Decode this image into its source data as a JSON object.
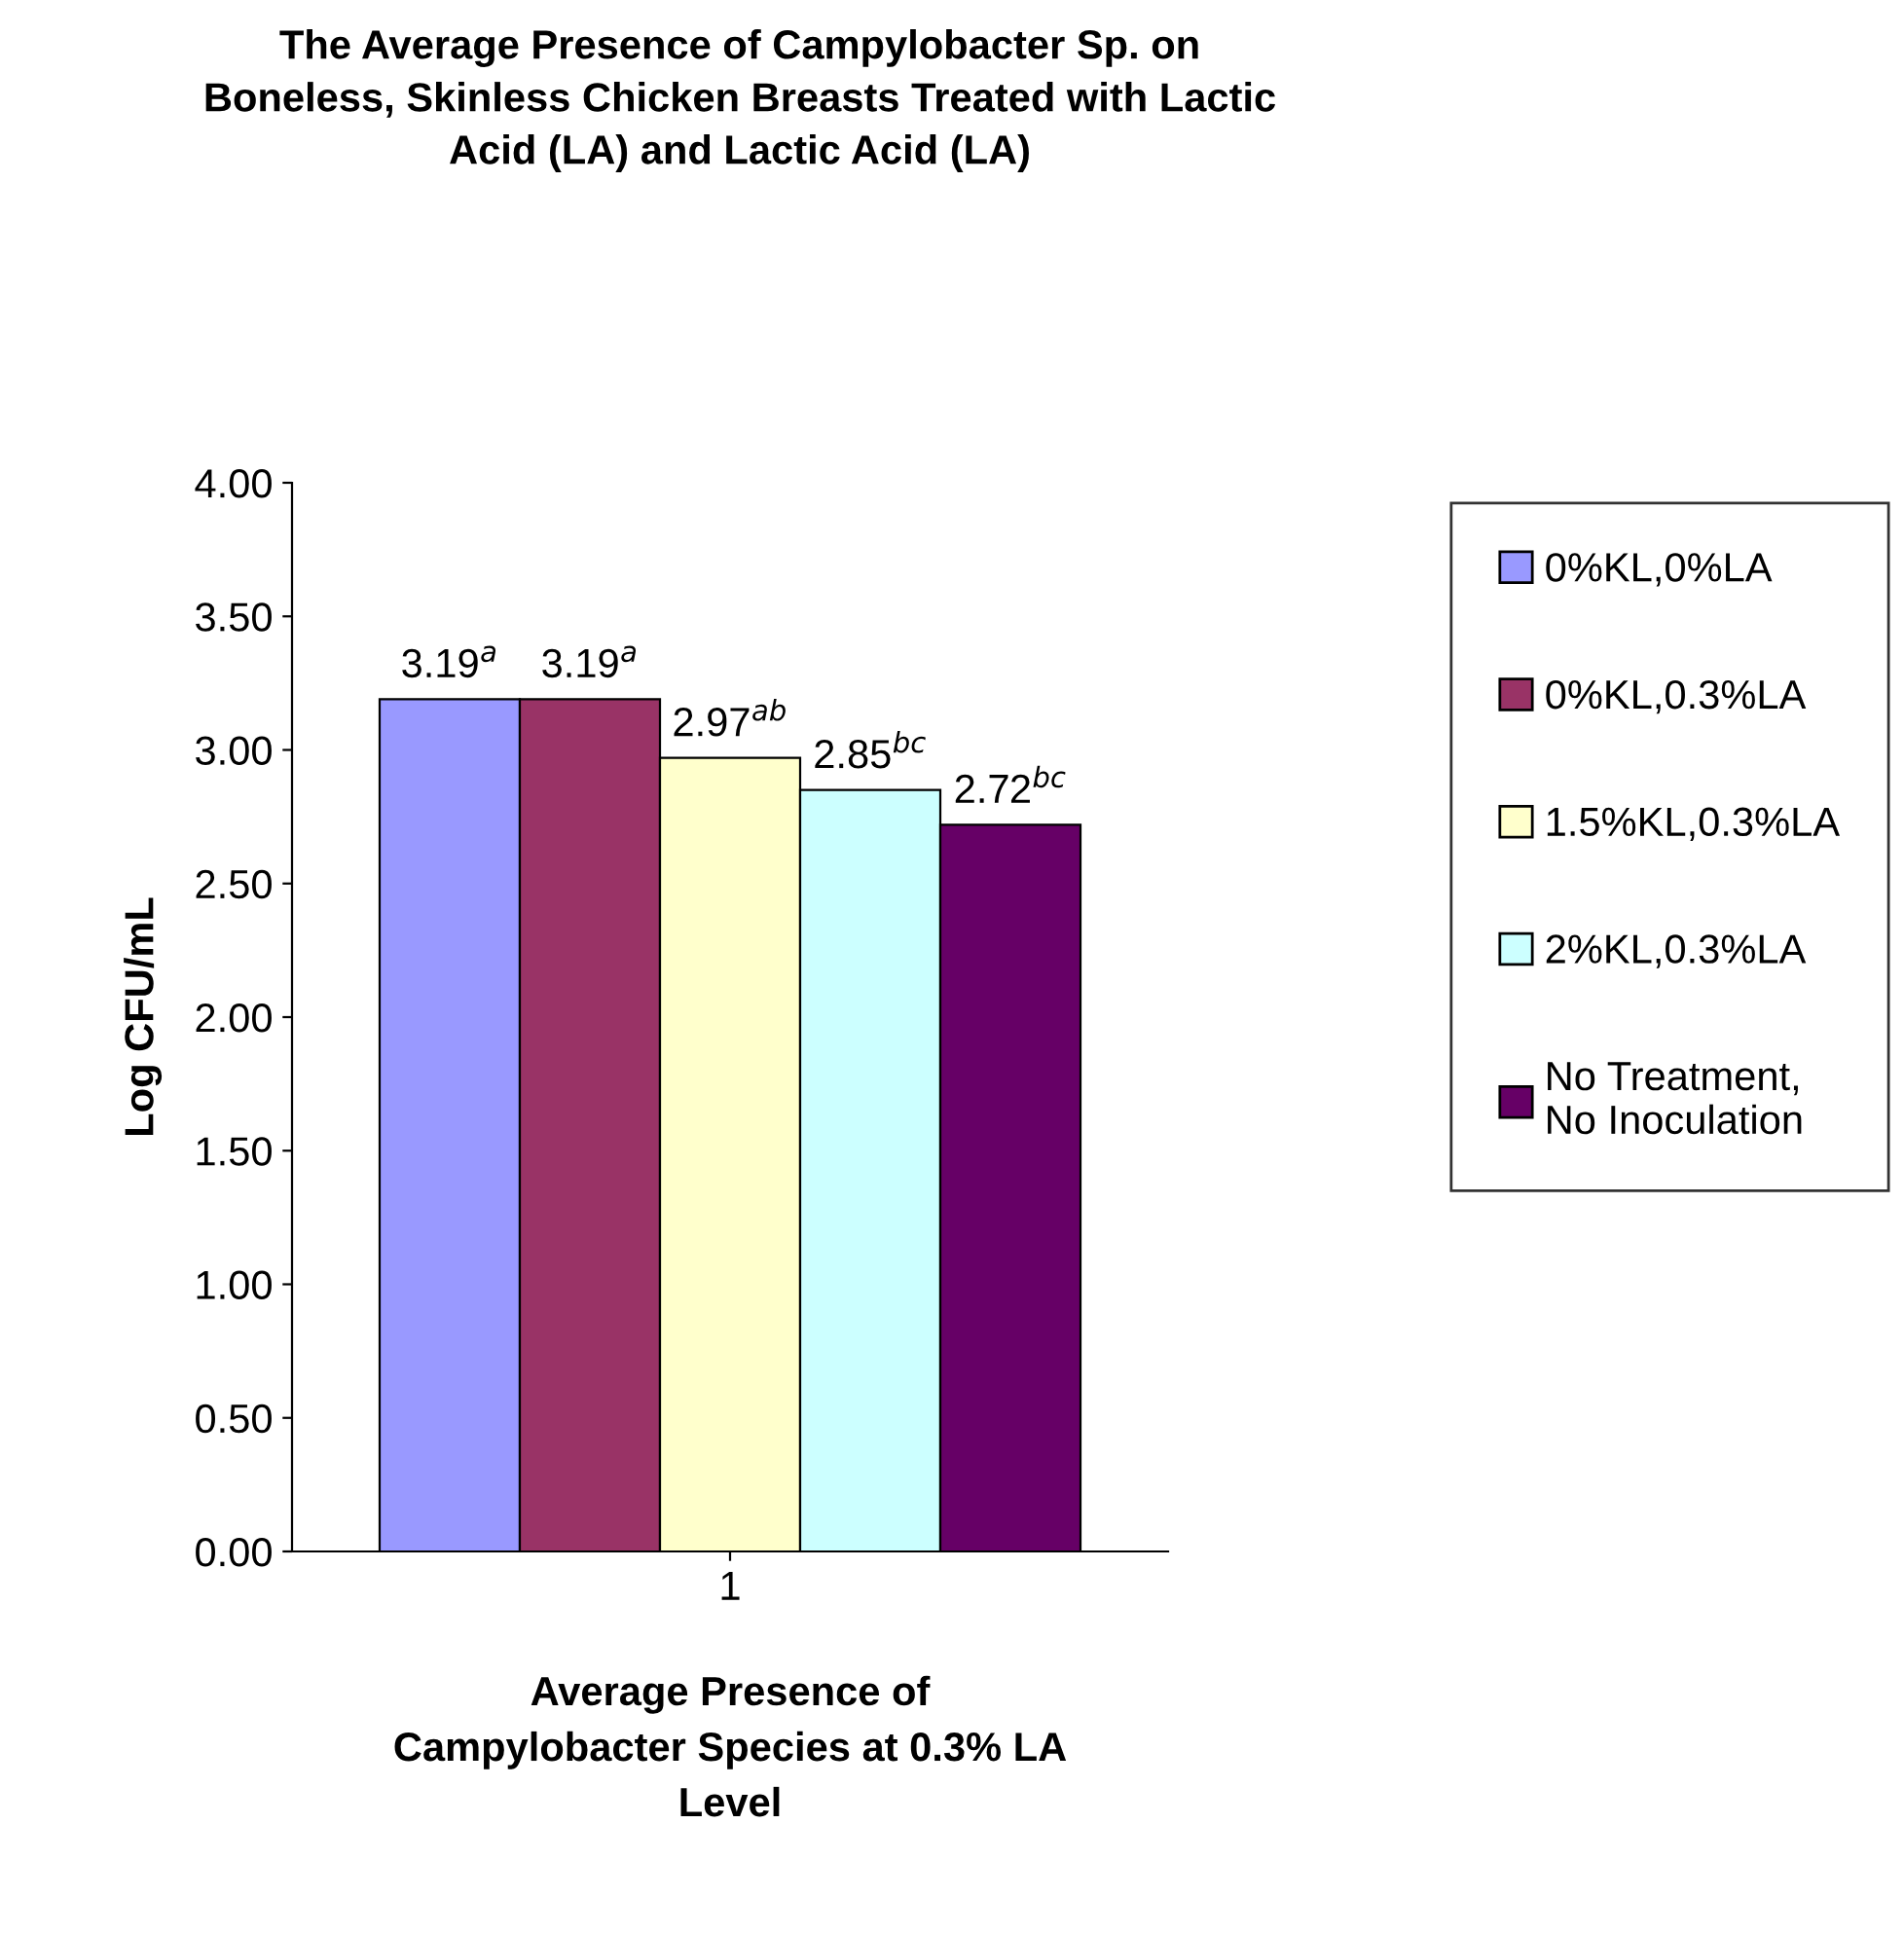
{
  "chart_data": {
    "type": "bar",
    "title": "The Average Presence of Campylobacter Sp. on\nBoneless, Skinless Chicken Breasts Treated with Lactic\nAcid (LA) and Lactic Acid (LA)",
    "xlabel": "Average Presence of\nCampylobacter Species at 0.3% LA\nLevel",
    "ylabel": "Log CFU/mL",
    "categories": [
      "1"
    ],
    "series": [
      {
        "name": "0%KL,0%LA",
        "color": "#9999ff",
        "values": [
          3.19
        ],
        "value_labels": [
          "3.19$^{a}$"
        ]
      },
      {
        "name": "0%KL,0.3%LA",
        "color": "#993366",
        "values": [
          3.19
        ],
        "value_labels": [
          "3.19$^{a}$"
        ]
      },
      {
        "name": "1.5%KL,0.3%LA",
        "color": "#ffffcc",
        "values": [
          2.97
        ],
        "value_labels": [
          "2.97$^{ab}$"
        ]
      },
      {
        "name": "2%KL,0.3%LA",
        "color": "#ccffff",
        "values": [
          2.85
        ],
        "value_labels": [
          "2.85$^{bc}$"
        ]
      },
      {
        "name": "No Treatment,\nNo Inoculation",
        "color": "#660066",
        "values": [
          2.72
        ],
        "value_labels": [
          "2.72$^{bc}$"
        ]
      }
    ],
    "ylim": [
      0,
      4
    ],
    "yticks": [
      {
        "value": 0,
        "label": "0.00"
      },
      {
        "value": 0.5,
        "label": "0.50"
      },
      {
        "value": 1,
        "label": "1.00"
      },
      {
        "value": 1.5,
        "label": "1.50"
      },
      {
        "value": 2,
        "label": "2.00"
      },
      {
        "value": 2.5,
        "label": "2.50"
      },
      {
        "value": 3,
        "label": "3.00"
      },
      {
        "value": 3.5,
        "label": "3.50"
      },
      {
        "value": 4,
        "label": "4.00"
      }
    ],
    "grid": false,
    "legend": "right"
  }
}
